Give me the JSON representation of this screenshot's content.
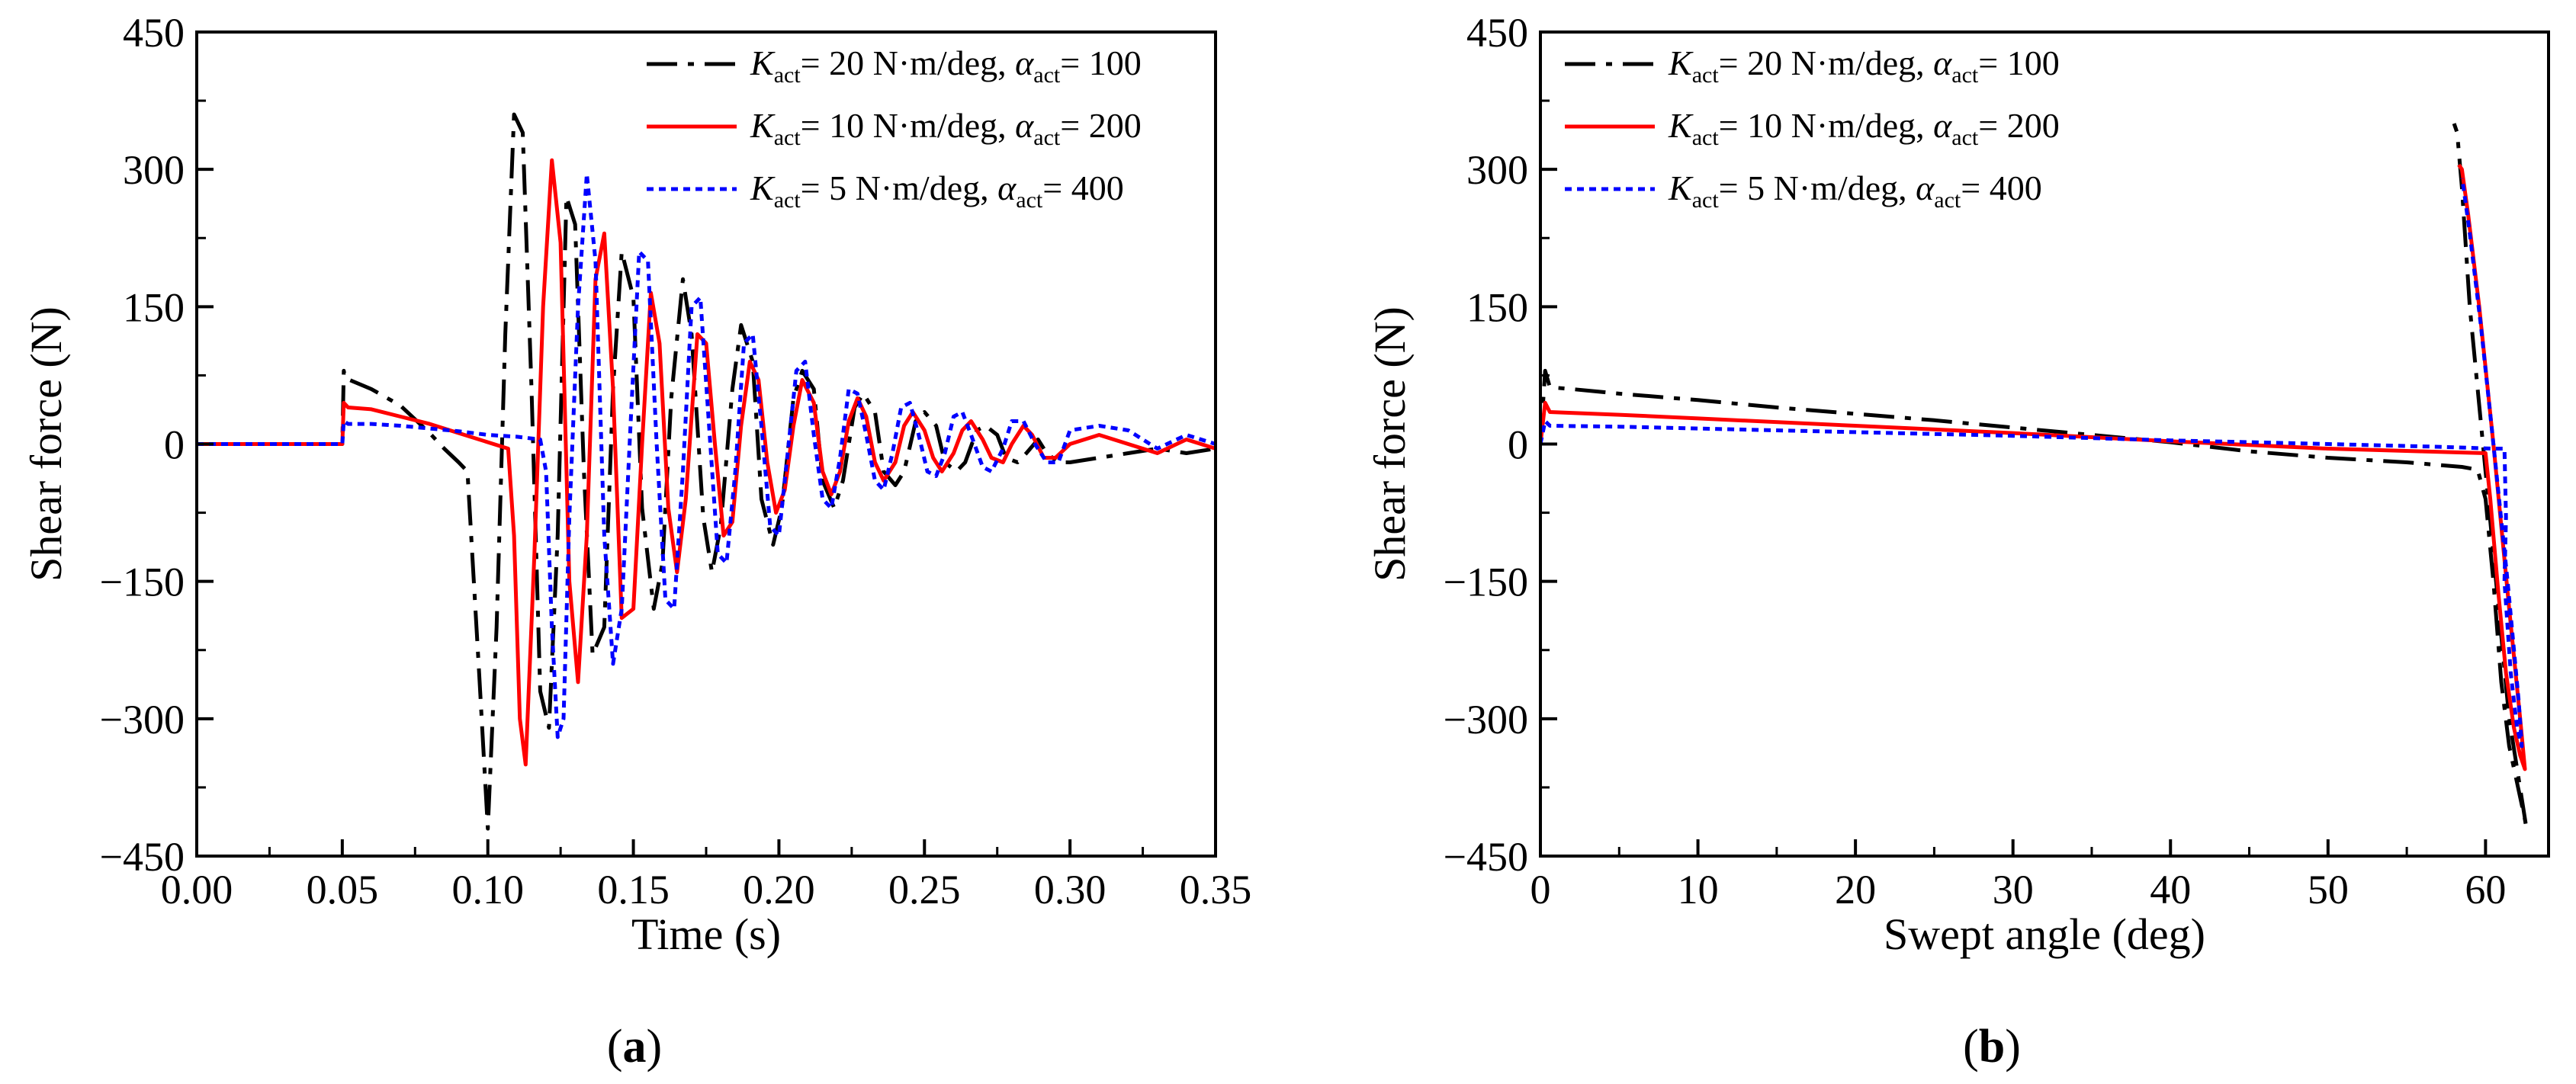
{
  "chart_data": [
    {
      "type": "line",
      "panel": "a",
      "caption": {
        "open": "(",
        "letter": "a",
        "close": ")"
      },
      "xlabel": "Time (s)",
      "ylabel": "Shear force (N)",
      "xlim": [
        0,
        0.35
      ],
      "ylim": [
        -450,
        450
      ],
      "xticks": [
        0,
        0.05,
        0.1,
        0.15,
        0.2,
        0.25,
        0.3,
        0.35
      ],
      "xtick_labels": [
        "0.00",
        "0.05",
        "0.10",
        "0.15",
        "0.20",
        "0.25",
        "0.30",
        "0.35"
      ],
      "yticks": [
        -450,
        -300,
        -150,
        0,
        150,
        300,
        450
      ],
      "ytick_labels": [
        "−450",
        "−300",
        "−150",
        "0",
        "150",
        "300",
        "450"
      ],
      "legend_position": "top-right",
      "series": [
        {
          "name": "K_act = 20 N·m/deg, α_act = 100",
          "legend": {
            "sym_k": "K",
            "sub_k": "act",
            "text1": "= 20 N·m/deg, ",
            "sym_a": "α",
            "sub_a": "act",
            "text2": "= 100"
          },
          "color": "#000000",
          "dash": "dashdot",
          "x": [
            0,
            0.05,
            0.0505,
            0.051,
            0.06,
            0.07,
            0.08,
            0.085,
            0.09,
            0.093,
            0.097,
            0.1,
            0.103,
            0.106,
            0.109,
            0.112,
            0.115,
            0.118,
            0.121,
            0.124,
            0.127,
            0.13,
            0.133,
            0.136,
            0.14,
            0.143,
            0.146,
            0.15,
            0.153,
            0.157,
            0.16,
            0.163,
            0.167,
            0.17,
            0.174,
            0.177,
            0.18,
            0.184,
            0.187,
            0.191,
            0.194,
            0.198,
            0.201,
            0.205,
            0.208,
            0.212,
            0.215,
            0.219,
            0.222,
            0.226,
            0.229,
            0.233,
            0.236,
            0.24,
            0.243,
            0.247,
            0.25,
            0.254,
            0.257,
            0.261,
            0.264,
            0.268,
            0.271,
            0.275,
            0.278,
            0.282,
            0.285,
            0.289,
            0.292,
            0.296,
            0.3,
            0.31,
            0.32,
            0.33,
            0.34,
            0.35
          ],
          "y": [
            0,
            0,
            80,
            72,
            60,
            42,
            12,
            -5,
            -20,
            -30,
            -250,
            -420,
            -200,
            120,
            360,
            340,
            60,
            -270,
            -310,
            -100,
            270,
            240,
            -30,
            -230,
            -200,
            60,
            210,
            160,
            -70,
            -180,
            -130,
            50,
            180,
            120,
            -80,
            -140,
            -90,
            60,
            130,
            90,
            -60,
            -110,
            -70,
            50,
            80,
            60,
            -40,
            -70,
            -40,
            40,
            55,
            35,
            -30,
            -45,
            -30,
            25,
            35,
            20,
            -20,
            -30,
            -20,
            15,
            20,
            10,
            -15,
            -20,
            -10,
            5,
            -10,
            -20,
            -20,
            -15,
            -10,
            -5,
            -10,
            -5
          ]
        },
        {
          "name": "K_act = 10 N·m/deg, α_act = 200",
          "legend": {
            "sym_k": "K",
            "sub_k": "act",
            "text1": "= 10 N·m/deg, ",
            "sym_a": "α",
            "sub_a": "act",
            "text2": "= 200"
          },
          "color": "#ff0000",
          "dash": "solid",
          "x": [
            0,
            0.05,
            0.0505,
            0.052,
            0.06,
            0.07,
            0.08,
            0.09,
            0.1,
            0.107,
            0.109,
            0.111,
            0.113,
            0.116,
            0.119,
            0.122,
            0.125,
            0.128,
            0.131,
            0.134,
            0.137,
            0.14,
            0.143,
            0.146,
            0.15,
            0.153,
            0.156,
            0.159,
            0.162,
            0.165,
            0.168,
            0.172,
            0.175,
            0.178,
            0.181,
            0.184,
            0.187,
            0.19,
            0.193,
            0.196,
            0.199,
            0.202,
            0.205,
            0.208,
            0.212,
            0.215,
            0.218,
            0.221,
            0.224,
            0.227,
            0.23,
            0.233,
            0.236,
            0.24,
            0.243,
            0.246,
            0.25,
            0.253,
            0.256,
            0.26,
            0.263,
            0.266,
            0.27,
            0.273,
            0.277,
            0.28,
            0.284,
            0.287,
            0.291,
            0.295,
            0.3,
            0.31,
            0.32,
            0.33,
            0.34,
            0.35
          ],
          "y": [
            0,
            0,
            45,
            40,
            38,
            30,
            22,
            12,
            2,
            -5,
            -100,
            -300,
            -350,
            -120,
            150,
            310,
            220,
            -150,
            -260,
            -100,
            180,
            230,
            60,
            -190,
            -180,
            0,
            165,
            110,
            -70,
            -140,
            -60,
            120,
            110,
            0,
            -100,
            -85,
            20,
            90,
            70,
            -20,
            -75,
            -50,
            20,
            70,
            45,
            -30,
            -55,
            -30,
            25,
            50,
            30,
            -20,
            -40,
            -20,
            20,
            35,
            15,
            -15,
            -30,
            -10,
            15,
            25,
            5,
            -15,
            -20,
            0,
            20,
            10,
            -15,
            -15,
            0,
            10,
            0,
            -10,
            5,
            -5
          ]
        },
        {
          "name": "K_act = 5   N·m/deg, α_act = 400",
          "legend": {
            "sym_k": "K",
            "sub_k": "act",
            "text1": "= 5   N·m/deg, ",
            "sym_a": "α",
            "sub_a": "act",
            "text2": "= 400"
          },
          "color": "#0000ff",
          "dash": "dotted",
          "x": [
            0,
            0.05,
            0.0505,
            0.052,
            0.06,
            0.07,
            0.08,
            0.09,
            0.1,
            0.11,
            0.118,
            0.12,
            0.122,
            0.124,
            0.126,
            0.128,
            0.131,
            0.134,
            0.137,
            0.14,
            0.143,
            0.146,
            0.149,
            0.152,
            0.155,
            0.158,
            0.161,
            0.164,
            0.167,
            0.17,
            0.173,
            0.176,
            0.179,
            0.182,
            0.185,
            0.188,
            0.191,
            0.194,
            0.197,
            0.2,
            0.203,
            0.206,
            0.209,
            0.212,
            0.215,
            0.218,
            0.221,
            0.224,
            0.227,
            0.23,
            0.233,
            0.236,
            0.239,
            0.242,
            0.245,
            0.248,
            0.251,
            0.254,
            0.257,
            0.26,
            0.263,
            0.266,
            0.27,
            0.273,
            0.277,
            0.28,
            0.284,
            0.288,
            0.292,
            0.296,
            0.3,
            0.31,
            0.32,
            0.33,
            0.34,
            0.35
          ],
          "y": [
            0,
            0,
            25,
            22,
            22,
            20,
            17,
            14,
            10,
            8,
            5,
            -30,
            -200,
            -320,
            -300,
            -80,
            150,
            295,
            200,
            -100,
            -240,
            -180,
            20,
            210,
            200,
            0,
            -170,
            -180,
            -30,
            150,
            160,
            20,
            -120,
            -130,
            -30,
            110,
            120,
            20,
            -90,
            -100,
            -10,
            80,
            90,
            10,
            -60,
            -70,
            -15,
            60,
            55,
            10,
            -40,
            -50,
            -10,
            40,
            45,
            10,
            -30,
            -35,
            -10,
            30,
            35,
            10,
            -25,
            -30,
            -5,
            25,
            25,
            0,
            -20,
            -20,
            15,
            20,
            15,
            -5,
            10,
            0
          ]
        }
      ]
    },
    {
      "type": "line",
      "panel": "b",
      "caption": {
        "open": "(",
        "letter": "b",
        "close": ")"
      },
      "xlabel": "Swept angle (deg)",
      "ylabel": "Shear force (N)",
      "xlim": [
        0,
        64
      ],
      "ylim": [
        -450,
        450
      ],
      "xticks": [
        0,
        10,
        20,
        30,
        40,
        50,
        60
      ],
      "xtick_labels": [
        "0",
        "10",
        "20",
        "30",
        "40",
        "50",
        "60"
      ],
      "yticks": [
        -450,
        -300,
        -150,
        0,
        150,
        300,
        450
      ],
      "ytick_labels": [
        "−450",
        "−300",
        "−150",
        "0",
        "150",
        "300",
        "450"
      ],
      "legend_position": "top-left",
      "series": [
        {
          "name": "K_act = 20 N·m/deg, α_act = 100",
          "legend": {
            "sym_k": "K",
            "sub_k": "act",
            "text1": "= 20 N·m/deg, ",
            "sym_a": "α",
            "sub_a": "act",
            "text2": "= 100"
          },
          "color": "#000000",
          "dash": "dashdot",
          "x": [
            0,
            0.3,
            0.6,
            2,
            5,
            10,
            15,
            20,
            25,
            30,
            35,
            40,
            45,
            50,
            55,
            58.5,
            59.5,
            60,
            60.5,
            61,
            61.5,
            62,
            62.5,
            62.6,
            61.5,
            60,
            59,
            58.5,
            58.2,
            58
          ],
          "y": [
            0,
            80,
            62,
            60,
            55,
            48,
            40,
            33,
            26,
            18,
            10,
            2,
            -8,
            -15,
            -20,
            -25,
            -28,
            -60,
            -150,
            -260,
            -330,
            -370,
            -410,
            -420,
            -300,
            -30,
            150,
            280,
            340,
            350
          ],
          "closed": false
        },
        {
          "name": "K_act = 10 N·m/deg, α_act = 200",
          "legend": {
            "sym_k": "K",
            "sub_k": "act",
            "text1": "= 10 N·m/deg, ",
            "sym_a": "α",
            "sub_a": "act",
            "text2": "= 200"
          },
          "color": "#ff0000",
          "dash": "solid",
          "x": [
            0,
            0.3,
            0.6,
            5,
            10,
            20,
            30,
            40,
            50,
            56,
            60,
            60.3,
            60.8,
            61.3,
            61.8,
            62.2,
            62.5,
            62.2,
            61.5,
            60.5,
            59.6,
            58.9,
            58.5,
            58.3
          ],
          "y": [
            0,
            45,
            35,
            32,
            28,
            20,
            12,
            3,
            -5,
            -8,
            -10,
            -60,
            -160,
            -250,
            -310,
            -340,
            -355,
            -300,
            -180,
            0,
            150,
            250,
            300,
            305
          ]
        },
        {
          "name": "K_act = 5   N·m/deg, α_act = 400",
          "legend": {
            "sym_k": "K",
            "sub_k": "act",
            "text1": "= 5   N·m/deg, ",
            "sym_a": "α",
            "sub_a": "act",
            "text2": "= 400"
          },
          "color": "#0000ff",
          "dash": "dotted",
          "x": [
            0,
            0.3,
            0.6,
            5,
            10,
            20,
            30,
            40,
            50,
            57,
            60.5,
            61.2,
            61.3,
            61.2,
            61.6,
            62,
            62.3,
            62.1,
            61.4,
            60.5,
            59.7,
            59,
            58.6,
            58.5
          ],
          "y": [
            0,
            25,
            20,
            19,
            17,
            13,
            9,
            4,
            0,
            -3,
            -5,
            -5,
            -80,
            -150,
            -250,
            -310,
            -330,
            -280,
            -150,
            0,
            130,
            230,
            280,
            290
          ]
        }
      ]
    }
  ]
}
